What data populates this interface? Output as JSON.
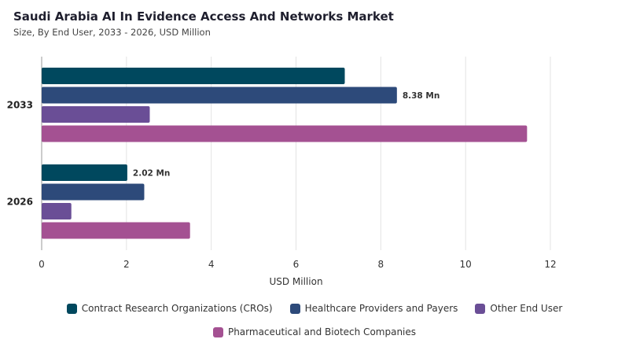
{
  "chart_data": {
    "type": "bar",
    "orientation": "horizontal",
    "title": "Saudi Arabia AI In Evidence Access And Networks Market",
    "subtitle": "Size, By End User, 2033 - 2026, USD Million",
    "xlabel": "USD Million",
    "ylabel": "",
    "xlim": [
      0,
      12
    ],
    "xticks": [
      0,
      2,
      4,
      6,
      8,
      10,
      12
    ],
    "grid": "vertical",
    "legend_position": "bottom",
    "categories": [
      "2033",
      "2026"
    ],
    "series": [
      {
        "name": "Contract Research Organizations (CROs)",
        "color": "#00485e",
        "values": [
          7.15,
          2.02
        ]
      },
      {
        "name": "Healthcare Providers and Payers",
        "color": "#2d4a7a",
        "values": [
          8.38,
          2.42
        ]
      },
      {
        "name": "Other End User",
        "color": "#6a4e96",
        "values": [
          2.55,
          0.7
        ]
      },
      {
        "name": "Pharmaceutical and Biotech Companies",
        "color": "#a45192",
        "values": [
          11.45,
          3.5
        ]
      }
    ],
    "data_labels": [
      {
        "category": "2033",
        "series": "Healthcare Providers and Payers",
        "text": "8.38 Mn"
      },
      {
        "category": "2026",
        "series": "Contract Research Organizations (CROs)",
        "text": "2.02 Mn"
      }
    ]
  }
}
